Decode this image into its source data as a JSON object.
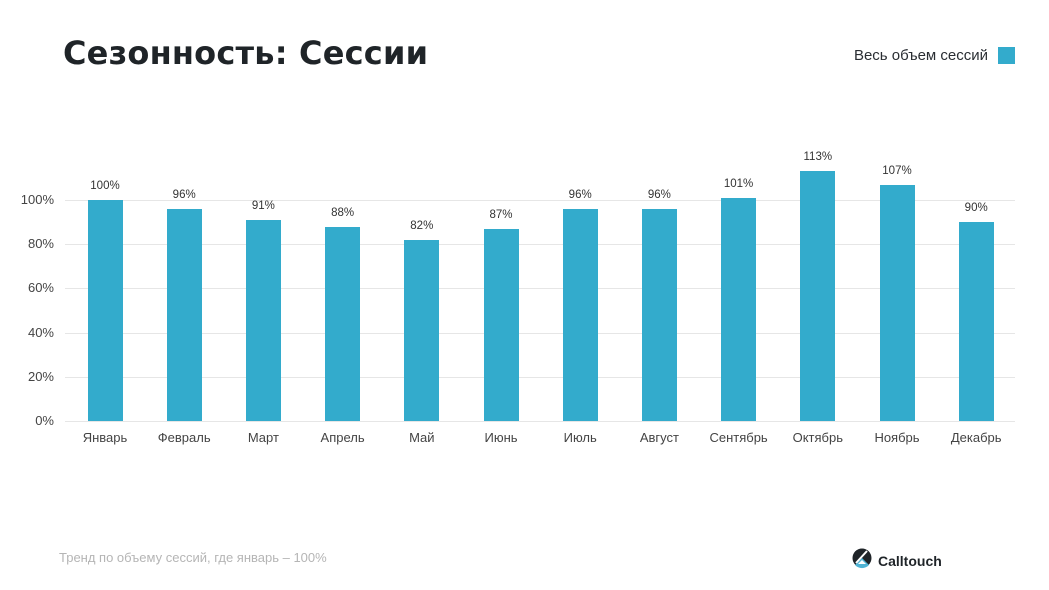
{
  "header": {
    "title": "Сезонность: Сессии"
  },
  "legend": {
    "label": "Весь объем сессий",
    "color": "#33abcc"
  },
  "footer": {
    "note": "Тренд по объему сессий, где январь – 100%",
    "brand": "Calltouch",
    "brand_icon": "calltouch-logo-icon"
  },
  "chart_data": {
    "type": "bar",
    "title": "Сезонность: Сессии",
    "xlabel": "",
    "ylabel": "",
    "categories": [
      "Январь",
      "Февраль",
      "Март",
      "Апрель",
      "Май",
      "Июнь",
      "Июль",
      "Август",
      "Сентябрь",
      "Октябрь",
      "Ноябрь",
      "Декабрь"
    ],
    "series": [
      {
        "name": "Весь объем сессий",
        "color": "#33abcc",
        "values": [
          100,
          96,
          91,
          88,
          82,
          87,
          96,
          96,
          101,
          113,
          107,
          90
        ],
        "labels": [
          "100%",
          "96%",
          "91%",
          "88%",
          "82%",
          "87%",
          "96%",
          "96%",
          "101%",
          "113%",
          "107%",
          "90%"
        ]
      }
    ],
    "yticks": [
      "0%",
      "20%",
      "40%",
      "60%",
      "80%",
      "100%"
    ],
    "ylim": [
      0,
      120
    ],
    "grid": true,
    "legend_position": "top-right",
    "annotation": "Тренд по объему сессий, где январь – 100%"
  }
}
